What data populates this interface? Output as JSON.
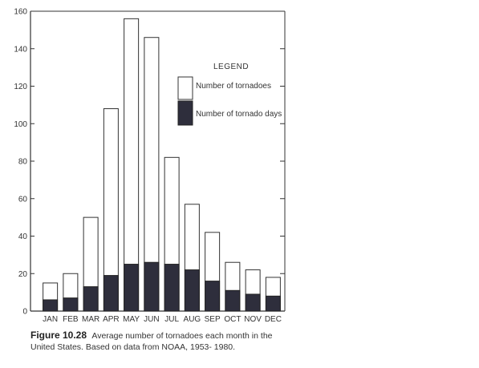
{
  "chart_data": {
    "type": "bar",
    "categories": [
      "JAN",
      "FEB",
      "MAR",
      "APR",
      "MAY",
      "JUN",
      "JUL",
      "AUG",
      "SEP",
      "OCT",
      "NOV",
      "DEC"
    ],
    "series": [
      {
        "name": "Number of tornadoes",
        "values": [
          15,
          20,
          50,
          108,
          156,
          146,
          82,
          57,
          42,
          26,
          22,
          18
        ],
        "color": "#ffffff"
      },
      {
        "name": "Number of tornado days",
        "values": [
          6,
          7,
          13,
          19,
          25,
          26,
          25,
          22,
          16,
          11,
          9,
          8
        ],
        "color": "#2e2e3c"
      }
    ],
    "overlay": true,
    "ylim": [
      0,
      160
    ],
    "yticks": [
      "0",
      "20",
      "40",
      "60",
      "80",
      "100",
      "120",
      "140",
      "160"
    ],
    "legend": {
      "title": "LEGEND",
      "placement": "top-right"
    },
    "title": "",
    "xlabel": "",
    "ylabel": ""
  },
  "caption": {
    "label": "Figure 10.28",
    "text": "Average number of tornadoes each month in the United States. Based on data from NOAA, 1953- 1980."
  }
}
